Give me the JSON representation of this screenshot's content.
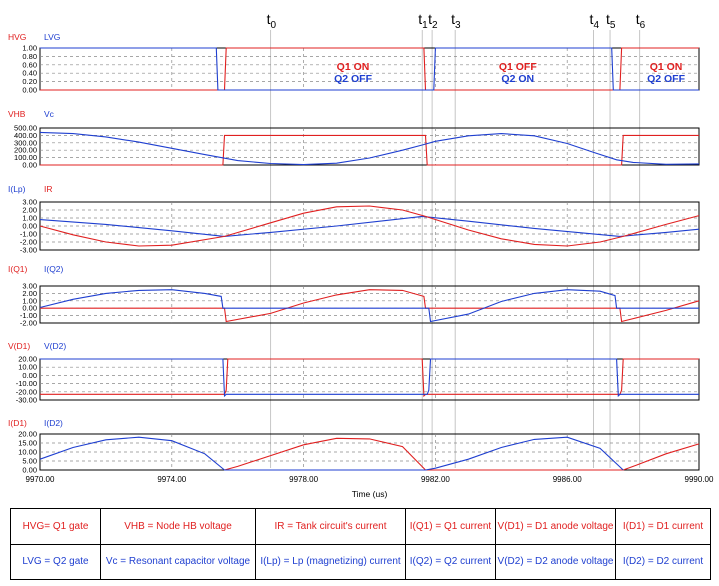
{
  "colors": {
    "red": "#e02020",
    "blue": "#1f3fd0",
    "grid": "#8a8a8a",
    "marker": "#b8b8b8"
  },
  "chart_data": {
    "type": "line",
    "xlabel": "Time (us)",
    "xlim": [
      9970,
      9990
    ],
    "xticks": [
      "9970.00",
      "9974.00",
      "9978.00",
      "9982.00",
      "9986.00",
      "9990.00"
    ],
    "time_markers": [
      {
        "main": "t",
        "sub": "0",
        "x": 9977.0
      },
      {
        "main": "t",
        "sub": "1",
        "x": 9981.6
      },
      {
        "main": "t",
        "sub": "2",
        "x": 9981.9
      },
      {
        "main": "t",
        "sub": "3",
        "x": 9982.6
      },
      {
        "main": "t",
        "sub": "4",
        "x": 9986.8
      },
      {
        "main": "t",
        "sub": "5",
        "x": 9987.3
      },
      {
        "main": "t",
        "sub": "6",
        "x": 9988.2
      }
    ],
    "panels": [
      {
        "name": "gates",
        "legend": [
          "HVG",
          "LVG"
        ],
        "ylim": [
          0,
          1
        ],
        "yticks": [
          "1.00",
          "0.80",
          "0.60",
          "0.40",
          "0.20",
          "0.00"
        ],
        "annotations": [
          {
            "x": 9979.5,
            "lines": [
              {
                "text": "Q1 ON",
                "color": "red"
              },
              {
                "text": "Q2 OFF",
                "color": "blue"
              }
            ]
          },
          {
            "x": 9984.5,
            "lines": [
              {
                "text": "Q1 OFF",
                "color": "red"
              },
              {
                "text": "Q2 ON",
                "color": "blue"
              }
            ]
          },
          {
            "x": 9989.0,
            "lines": [
              {
                "text": "Q1 ON",
                "color": "red"
              },
              {
                "text": "Q2 OFF",
                "color": "blue"
              }
            ]
          }
        ],
        "series": [
          {
            "name": "HVG",
            "color": "red",
            "points": [
              [
                9970,
                0
              ],
              [
                9975.6,
                0
              ],
              [
                9975.65,
                1
              ],
              [
                9981.65,
                1
              ],
              [
                9981.7,
                0
              ],
              [
                9987.6,
                0
              ],
              [
                9987.65,
                1
              ],
              [
                9990,
                1
              ]
            ]
          },
          {
            "name": "LVG",
            "color": "blue",
            "points": [
              [
                9970,
                1
              ],
              [
                9975.35,
                1
              ],
              [
                9975.4,
                0
              ],
              [
                9981.95,
                0
              ],
              [
                9982.0,
                1
              ],
              [
                9987.35,
                1
              ],
              [
                9987.4,
                0
              ],
              [
                9990,
                0
              ]
            ]
          }
        ]
      },
      {
        "name": "vhb-vc",
        "legend": [
          "VHB",
          "Vc"
        ],
        "ylim": [
          0,
          500
        ],
        "yticks": [
          "500.00",
          "400.00",
          "300.00",
          "200.00",
          "100.00",
          "0.00"
        ],
        "series": [
          {
            "name": "VHB",
            "color": "red",
            "points": [
              [
                9970,
                0
              ],
              [
                9975.55,
                0
              ],
              [
                9975.6,
                400
              ],
              [
                9981.7,
                400
              ],
              [
                9981.75,
                0
              ],
              [
                9987.65,
                0
              ],
              [
                9987.7,
                400
              ],
              [
                9990,
                400
              ]
            ]
          },
          {
            "name": "Vc",
            "color": "blue",
            "points": [
              [
                9970,
                440
              ],
              [
                9971,
                425
              ],
              [
                9972,
                380
              ],
              [
                9973,
                310
              ],
              [
                9974,
                225
              ],
              [
                9975,
                140
              ],
              [
                9975.5,
                100
              ],
              [
                9976,
                60
              ],
              [
                9977,
                20
              ],
              [
                9978,
                5
              ],
              [
                9979,
                25
              ],
              [
                9980,
                95
              ],
              [
                9981,
                200
              ],
              [
                9981.6,
                270
              ],
              [
                9982,
                320
              ],
              [
                9983,
                395
              ],
              [
                9984,
                425
              ],
              [
                9985,
                395
              ],
              [
                9986,
                290
              ],
              [
                9986.8,
                170
              ],
              [
                9987.5,
                70
              ],
              [
                9988,
                35
              ],
              [
                9989,
                10
              ],
              [
                9990,
                15
              ]
            ]
          }
        ]
      },
      {
        "name": "currents-tank",
        "legend": [
          "I(Lp)",
          "IR"
        ],
        "ylim": [
          -3,
          3
        ],
        "yticks": [
          "3.00",
          "2.00",
          "1.00",
          "0.00",
          "-1.00",
          "-2.00",
          "-3.00"
        ],
        "series": [
          {
            "name": "I(Lp)",
            "color": "blue",
            "points": [
              [
                9970,
                0.8
              ],
              [
                9972,
                0.2
              ],
              [
                9974,
                -0.6
              ],
              [
                9975.6,
                -1.3
              ],
              [
                9977,
                -0.8
              ],
              [
                9979,
                0
              ],
              [
                9981.6,
                1.2
              ],
              [
                9983,
                0.6
              ],
              [
                9985,
                -0.3
              ],
              [
                9987.6,
                -1.3
              ],
              [
                9989,
                -0.8
              ],
              [
                9990,
                -0.4
              ]
            ]
          },
          {
            "name": "IR",
            "color": "red",
            "points": [
              [
                9970,
                0
              ],
              [
                9971,
                -1.1
              ],
              [
                9972,
                -2.0
              ],
              [
                9973,
                -2.5
              ],
              [
                9974,
                -2.4
              ],
              [
                9975.6,
                -1.3
              ],
              [
                9977,
                0.4
              ],
              [
                9978,
                1.6
              ],
              [
                9979,
                2.4
              ],
              [
                9980,
                2.5
              ],
              [
                9981,
                2.0
              ],
              [
                9981.7,
                1.2
              ],
              [
                9983,
                -0.5
              ],
              [
                9984,
                -1.6
              ],
              [
                9985,
                -2.3
              ],
              [
                9986,
                -2.5
              ],
              [
                9987,
                -2.0
              ],
              [
                9987.7,
                -1.3
              ],
              [
                9989,
                0.2
              ],
              [
                9990,
                1.3
              ]
            ]
          }
        ]
      },
      {
        "name": "switch-currents",
        "legend": [
          "I(Q1)",
          "I(Q2)"
        ],
        "ylim": [
          -2,
          3
        ],
        "yticks": [
          "3.00",
          "2.00",
          "1.00",
          "0.00",
          "-1.00",
          "-2.00"
        ],
        "series": [
          {
            "name": "I(Q1)",
            "color": "red",
            "points": [
              [
                9970,
                0
              ],
              [
                9975.6,
                0
              ],
              [
                9975.65,
                -1.8
              ],
              [
                9977,
                -0.7
              ],
              [
                9978,
                0.7
              ],
              [
                9979,
                1.8
              ],
              [
                9980,
                2.5
              ],
              [
                9981,
                2.4
              ],
              [
                9981.65,
                1.6
              ],
              [
                9981.7,
                0
              ],
              [
                9987.6,
                0
              ],
              [
                9987.65,
                -1.8
              ],
              [
                9989,
                -0.3
              ],
              [
                9990,
                1.0
              ]
            ]
          },
          {
            "name": "I(Q2)",
            "color": "blue",
            "points": [
              [
                9970,
                0.1
              ],
              [
                9971,
                1.2
              ],
              [
                9972,
                2.0
              ],
              [
                9973,
                2.4
              ],
              [
                9974,
                2.5
              ],
              [
                9975,
                2.0
              ],
              [
                9975.5,
                1.6
              ],
              [
                9975.55,
                0
              ],
              [
                9981.8,
                0
              ],
              [
                9981.85,
                -1.8
              ],
              [
                9983,
                -0.8
              ],
              [
                9984,
                0.9
              ],
              [
                9985,
                2.0
              ],
              [
                9986,
                2.5
              ],
              [
                9987,
                2.3
              ],
              [
                9987.45,
                1.7
              ],
              [
                9987.5,
                0
              ],
              [
                9990,
                0
              ]
            ]
          }
        ]
      },
      {
        "name": "diode-voltages",
        "legend": [
          "V(D1)",
          "V(D2)"
        ],
        "ylim": [
          -30,
          20
        ],
        "yticks": [
          "20.00",
          "10.00",
          "0.00",
          "-10.00",
          "-20.00",
          "-30.00"
        ],
        "series": [
          {
            "name": "V(D1)",
            "color": "red",
            "points": [
              [
                9970,
                -23
              ],
              [
                9975.6,
                -23
              ],
              [
                9975.65,
                -18
              ],
              [
                9975.7,
                20
              ],
              [
                9981.6,
                20
              ],
              [
                9981.65,
                -25
              ],
              [
                9981.7,
                -23
              ],
              [
                9987.6,
                -23
              ],
              [
                9987.65,
                -18
              ],
              [
                9987.7,
                20
              ],
              [
                9990,
                20
              ]
            ]
          },
          {
            "name": "V(D2)",
            "color": "blue",
            "points": [
              [
                9970,
                20
              ],
              [
                9975.55,
                20
              ],
              [
                9975.6,
                -25
              ],
              [
                9975.65,
                -23
              ],
              [
                9981.75,
                -23
              ],
              [
                9981.8,
                -18
              ],
              [
                9981.85,
                20
              ],
              [
                9987.5,
                20
              ],
              [
                9987.55,
                -25
              ],
              [
                9987.6,
                -23
              ],
              [
                9990,
                -23
              ]
            ]
          }
        ]
      },
      {
        "name": "diode-currents",
        "legend": [
          "I(D1)",
          "I(D2)"
        ],
        "ylim": [
          0,
          20
        ],
        "yticks": [
          "20.00",
          "15.00",
          "10.00",
          "5.00",
          "0.00"
        ],
        "series": [
          {
            "name": "I(D1)",
            "color": "red",
            "points": [
              [
                9975.6,
                0
              ],
              [
                9976,
                2
              ],
              [
                9977,
                8
              ],
              [
                9978,
                14
              ],
              [
                9979,
                17.6
              ],
              [
                9980,
                17.3
              ],
              [
                9981,
                13
              ],
              [
                9981.7,
                0
              ],
              [
                9987.7,
                0
              ],
              [
                9988,
                2
              ],
              [
                9989,
                9
              ],
              [
                9990,
                14.5
              ]
            ]
          },
          {
            "name": "I(D2)",
            "color": "blue",
            "points": [
              [
                9970,
                6
              ],
              [
                9971,
                12.5
              ],
              [
                9972,
                16.8
              ],
              [
                9973,
                18.2
              ],
              [
                9974,
                16.3
              ],
              [
                9975,
                9
              ],
              [
                9975.6,
                0
              ],
              [
                9981.7,
                0
              ],
              [
                9982,
                1
              ],
              [
                9983,
                6
              ],
              [
                9984,
                12.5
              ],
              [
                9985,
                17
              ],
              [
                9986,
                18.2
              ],
              [
                9987,
                12
              ],
              [
                9987.7,
                0
              ]
            ]
          }
        ]
      }
    ]
  },
  "legend_table": {
    "row1": [
      "HVG= Q1 gate",
      "VHB = Node HB voltage",
      "IR = Tank circuit's current",
      "I(Q1) = Q1 current",
      "V(D1) = D1 anode voltage",
      "I(D1) = D1 current"
    ],
    "row2": [
      "LVG = Q2 gate",
      "Vc = Resonant capacitor voltage",
      "I(Lp) = Lp (magnetizing) current",
      "I(Q2) = Q2 current",
      "V(D2) = D2 anode voltage",
      "I(D2) = D2 current"
    ]
  }
}
